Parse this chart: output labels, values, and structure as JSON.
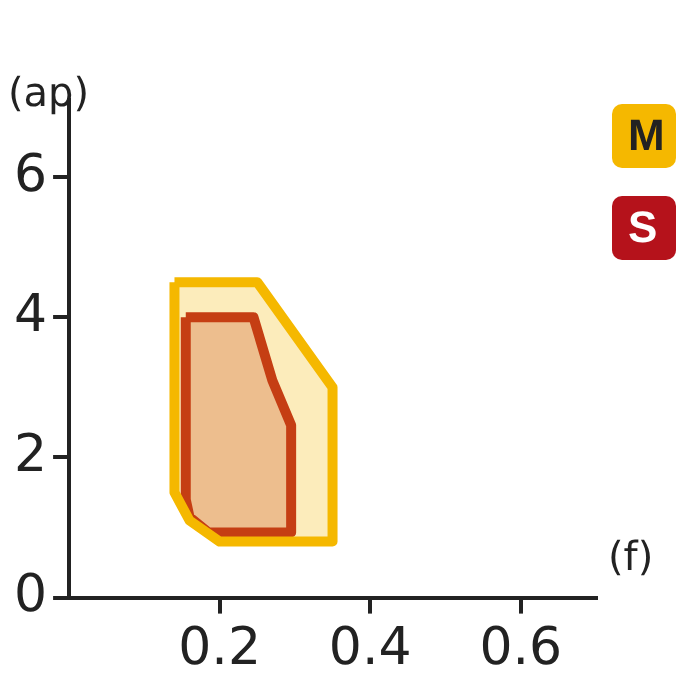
{
  "chart_data": {
    "type": "area",
    "xlabel": "(f)",
    "ylabel": "(ap)",
    "xlim": [
      0,
      0.7
    ],
    "ylim": [
      0,
      7.1
    ],
    "xticks": [
      0.2,
      0.4,
      0.6
    ],
    "yticks": [
      0,
      2,
      4,
      6
    ],
    "grid": false,
    "legend": "top right",
    "marker": "none",
    "series": [
      {
        "name": "M",
        "color": "#f5b800",
        "x": [
          0.14,
          0.25,
          0.35,
          0.35,
          0.2,
          0.16,
          0.14,
          0.14
        ],
        "values": [
          4.5,
          4.5,
          3.0,
          0.8,
          0.8,
          1.1,
          1.5,
          4.5
        ]
      },
      {
        "name": "S",
        "color": "#b5121b",
        "x": [
          0.155,
          0.245,
          0.27,
          0.295,
          0.295,
          0.185,
          0.16,
          0.155,
          0.155
        ],
        "values": [
          4.0,
          4.0,
          3.1,
          2.46,
          0.93,
          0.93,
          1.15,
          1.4,
          4.0
        ]
      }
    ]
  }
}
